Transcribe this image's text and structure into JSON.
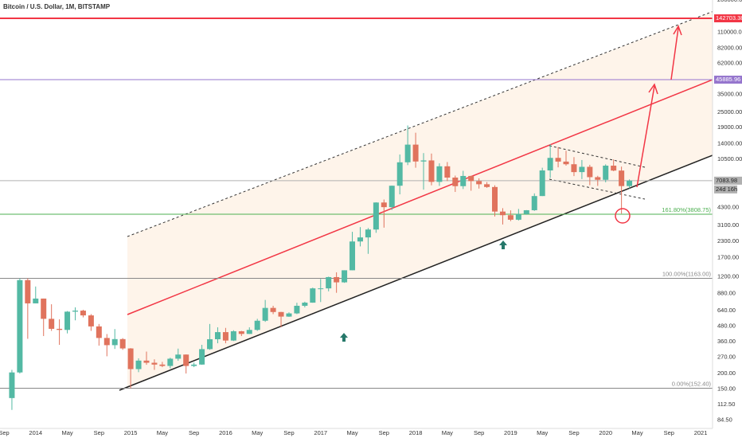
{
  "chart_data": {
    "type": "candlestick",
    "title": "Bitcoin / U.S. Dollar, 1M, BITSTAMP",
    "x": [
      "2013-10",
      "2013-11",
      "2013-12",
      "2014-01",
      "2014-02",
      "2014-03",
      "2014-04",
      "2014-05",
      "2014-06",
      "2014-07",
      "2014-08",
      "2014-09",
      "2014-10",
      "2014-11",
      "2014-12",
      "2015-01",
      "2015-02",
      "2015-03",
      "2015-04",
      "2015-05",
      "2015-06",
      "2015-07",
      "2015-08",
      "2015-09",
      "2015-10",
      "2015-11",
      "2015-12",
      "2016-01",
      "2016-02",
      "2016-03",
      "2016-04",
      "2016-05",
      "2016-06",
      "2016-07",
      "2016-08",
      "2016-09",
      "2016-10",
      "2016-11",
      "2016-12",
      "2017-01",
      "2017-02",
      "2017-03",
      "2017-04",
      "2017-05",
      "2017-06",
      "2017-07",
      "2017-08",
      "2017-09",
      "2017-10",
      "2017-11",
      "2017-12",
      "2018-01",
      "2018-02",
      "2018-03",
      "2018-04",
      "2018-05",
      "2018-06",
      "2018-07",
      "2018-08",
      "2018-09",
      "2018-10",
      "2018-11",
      "2018-12",
      "2019-01",
      "2019-02",
      "2019-03",
      "2019-04",
      "2019-05",
      "2019-06",
      "2019-07",
      "2019-08",
      "2019-09",
      "2019-10",
      "2019-11",
      "2019-12",
      "2020-01",
      "2020-02",
      "2020-03",
      "2020-04"
    ],
    "open": [
      127,
      204,
      1126,
      732,
      800,
      550,
      457,
      448,
      628,
      640,
      586,
      478,
      386,
      338,
      378,
      318,
      217,
      254,
      244,
      236,
      230,
      263,
      284,
      230,
      236,
      314,
      377,
      430,
      368,
      437,
      416,
      448,
      531,
      673,
      624,
      573,
      608,
      700,
      742,
      966,
      966,
      1190,
      1080,
      1350,
      2300,
      2480,
      2870,
      4730,
      4340,
      6450,
      9950,
      13800,
      10100,
      10300,
      6930,
      9240,
      7500,
      6400,
      7730,
      7030,
      6630,
      6300,
      4000,
      3740,
      3440,
      3820,
      4100,
      5330,
      8560,
      10800,
      10080,
      9600,
      8300,
      9150,
      7560,
      7200,
      9350,
      8540,
      6410
    ],
    "high": [
      214,
      1163,
      1163,
      1000,
      800,
      720,
      545,
      635,
      680,
      650,
      600,
      500,
      415,
      455,
      385,
      320,
      265,
      300,
      260,
      248,
      268,
      317,
      285,
      245,
      340,
      500,
      470,
      465,
      445,
      440,
      470,
      550,
      780,
      700,
      625,
      620,
      740,
      755,
      980,
      1150,
      1200,
      1300,
      1350,
      2750,
      3000,
      2950,
      4750,
      5000,
      6470,
      11500,
      19670,
      17200,
      11800,
      11700,
      9760,
      10000,
      7780,
      8500,
      7760,
      7400,
      6900,
      6500,
      4260,
      4090,
      4200,
      4110,
      5600,
      9000,
      13880,
      13200,
      12320,
      10950,
      10380,
      9500,
      7750,
      9580,
      10500,
      9190,
      7250
    ],
    "low": [
      102,
      200,
      380,
      732,
      400,
      440,
      340,
      420,
      535,
      565,
      440,
      335,
      275,
      315,
      310,
      152,
      205,
      235,
      214,
      225,
      220,
      253,
      200,
      225,
      235,
      310,
      350,
      350,
      365,
      400,
      415,
      440,
      520,
      600,
      470,
      570,
      600,
      680,
      740,
      750,
      915,
      890,
      1070,
      1350,
      2100,
      1830,
      2700,
      2970,
      4120,
      5500,
      9450,
      9000,
      6000,
      6500,
      6430,
      7030,
      5750,
      6070,
      5880,
      6120,
      6200,
      3650,
      3150,
      3350,
      3390,
      3770,
      4050,
      5330,
      7450,
      9060,
      9350,
      7710,
      7300,
      6520,
      6430,
      6870,
      8440,
      3850,
      6150
    ],
    "close": [
      204,
      1126,
      732,
      800,
      550,
      457,
      448,
      628,
      640,
      586,
      478,
      386,
      338,
      378,
      318,
      217,
      254,
      244,
      236,
      230,
      263,
      284,
      230,
      236,
      314,
      377,
      430,
      368,
      437,
      416,
      448,
      531,
      673,
      624,
      573,
      608,
      700,
      742,
      966,
      966,
      1190,
      1080,
      1350,
      2300,
      2480,
      2870,
      4730,
      4340,
      6450,
      9950,
      13800,
      10100,
      10300,
      6930,
      9240,
      7500,
      6400,
      7730,
      7030,
      6630,
      6300,
      4000,
      3740,
      3440,
      3820,
      4100,
      5330,
      8560,
      10800,
      10080,
      9600,
      8300,
      9150,
      7560,
      7200,
      9350,
      8540,
      6410,
      7083.98
    ],
    "up_color": "#53b9a4",
    "down_color": "#e0735d",
    "log_scale": true,
    "xlim": [
      "2013-09",
      "2021-02"
    ],
    "ylim": [
      72.4,
      200300
    ],
    "xticks": [
      {
        "value": "2013-09",
        "label": "Sep"
      },
      {
        "value": "2014-01",
        "label": "2014"
      },
      {
        "value": "2014-05",
        "label": "May"
      },
      {
        "value": "2014-09",
        "label": "Sep"
      },
      {
        "value": "2015-01",
        "label": "2015"
      },
      {
        "value": "2015-05",
        "label": "May"
      },
      {
        "value": "2015-09",
        "label": "Sep"
      },
      {
        "value": "2016-01",
        "label": "2016"
      },
      {
        "value": "2016-05",
        "label": "May"
      },
      {
        "value": "2016-09",
        "label": "Sep"
      },
      {
        "value": "2017-01",
        "label": "2017"
      },
      {
        "value": "2017-05",
        "label": "May"
      },
      {
        "value": "2017-09",
        "label": "Sep"
      },
      {
        "value": "2018-01",
        "label": "2018"
      },
      {
        "value": "2018-05",
        "label": "May"
      },
      {
        "value": "2018-09",
        "label": "Sep"
      },
      {
        "value": "2019-01",
        "label": "2019"
      },
      {
        "value": "2019-05",
        "label": "May"
      },
      {
        "value": "2019-09",
        "label": "Sep"
      },
      {
        "value": "2020-01",
        "label": "2020"
      },
      {
        "value": "2020-05",
        "label": "May"
      },
      {
        "value": "2020-09",
        "label": "Sep"
      },
      {
        "value": "2021-01",
        "label": "2021"
      }
    ],
    "yticks": [
      {
        "value": 200000,
        "label": "200000.00"
      },
      {
        "value": 110000,
        "label": "110000.00"
      },
      {
        "value": 82000,
        "label": "82000.00"
      },
      {
        "value": 62000,
        "label": "62000.00"
      },
      {
        "value": 35000,
        "label": "35000.00"
      },
      {
        "value": 25000,
        "label": "25000.00"
      },
      {
        "value": 19000,
        "label": "19000.00"
      },
      {
        "value": 14000,
        "label": "14000.00"
      },
      {
        "value": 10500,
        "label": "10500.00"
      },
      {
        "value": 4300,
        "label": "4300.00"
      },
      {
        "value": 3100,
        "label": "3100.00"
      },
      {
        "value": 2300,
        "label": "2300.00"
      },
      {
        "value": 1700,
        "label": "1700.00"
      },
      {
        "value": 1200,
        "label": "1200.00"
      },
      {
        "value": 880,
        "label": "880.00"
      },
      {
        "value": 640,
        "label": "640.00"
      },
      {
        "value": 480,
        "label": "480.00"
      },
      {
        "value": 360,
        "label": "360.00"
      },
      {
        "value": 270,
        "label": "270.00"
      },
      {
        "value": 200,
        "label": "200.00"
      },
      {
        "value": 150,
        "label": "150.00"
      },
      {
        "value": 112.5,
        "label": "112.50"
      },
      {
        "value": 84.5,
        "label": "84.50"
      }
    ],
    "levels": [
      {
        "value": 142703.38,
        "label": "142703.38",
        "color": "#f23645",
        "style": "axis"
      },
      {
        "value": 45885.96,
        "label": "45885.96",
        "color": "#9575cd",
        "style": "axis"
      },
      {
        "value": 7083.98,
        "label": "7083.98",
        "color": "#b0b0b0",
        "style": "axis"
      },
      {
        "value": 3808.75,
        "label": "161.80%(3808.75)",
        "color": "#4caf50",
        "style": "fib"
      },
      {
        "value": 1163,
        "label": "100.00%(1163.00)",
        "color": "#888888",
        "style": "fib"
      },
      {
        "value": 152.4,
        "label": "0.00%(152.40)",
        "color": "#888888",
        "style": "fib"
      }
    ],
    "countdown": "24d 16h"
  }
}
